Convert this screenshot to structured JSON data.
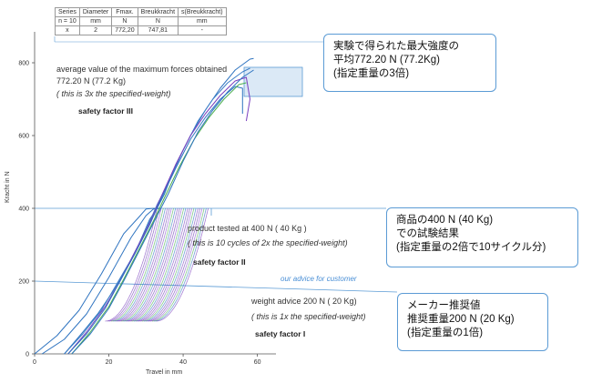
{
  "table": {
    "headers": [
      "Series",
      "Diameter",
      "Fmax.",
      "Breukkracht",
      "s(Breukkracht)"
    ],
    "units": [
      "n = 10",
      "mm",
      "N",
      "N",
      "mm"
    ],
    "row": [
      "x",
      "2",
      "772,20",
      "747,81",
      "-"
    ]
  },
  "annotations": {
    "avg_line1": "average value of the maximum forces obtained",
    "avg_line2": "772.20 N    (77.2 Kg)",
    "avg_line3": "( this is 3x the specified-weight)",
    "sf3": "safety factor III",
    "tested_line1": "product tested at   400 N   ( 40 Kg )",
    "tested_line2": "( this is 10 cycles of 2x the specified-weight)",
    "sf2": "safety factor II",
    "advice_header": "our advice for customer",
    "advice_line1": "weight advice   200 N   ( 20 Kg)",
    "advice_line2": "( this is 1x the specified-weight)",
    "sf1": "safety factor  I"
  },
  "callouts": {
    "top": [
      "実験で得られた最大強度の",
      "平均772.20 N (77.2Kg)",
      "(指定重量の3倍)"
    ],
    "middle": [
      "商品の400 N (40 Kg)",
      "での試験結果",
      "(指定重量の2倍で10サイクル分)"
    ],
    "bottom": [
      "メーカー推奨値",
      "推奨重量200 N (20 Kg)",
      "(指定重量の1倍)"
    ]
  },
  "colors": {
    "curve_blue": "#2f74c0",
    "curve_purple": "#7a3fbf",
    "curve_green": "#4caf50",
    "guide_line": "#5b9bd5",
    "highlight_fill": "#dbe9f6"
  },
  "chart_data": {
    "type": "line",
    "xlabel": "Travel in mm",
    "ylabel": "Kracht in N",
    "xlim": [
      0,
      65
    ],
    "ylim": [
      0,
      860
    ],
    "x_ticks": [
      "0",
      "20",
      "40",
      "60"
    ],
    "y_ticks": [
      "0",
      "200",
      "400",
      "600",
      "800"
    ],
    "reference_levels_N": [
      200,
      400,
      772.2
    ],
    "series": [
      {
        "values": [
          [
            0,
            0
          ],
          [
            6,
            50
          ],
          [
            12,
            120
          ],
          [
            18,
            220
          ],
          [
            24,
            330
          ],
          [
            28,
            375
          ],
          [
            30,
            398
          ],
          [
            32,
            400
          ],
          [
            34,
            400
          ]
        ],
        "color": "#2f74c0"
      },
      {
        "values": [
          [
            2,
            0
          ],
          [
            8,
            40
          ],
          [
            14,
            110
          ],
          [
            20,
            210
          ],
          [
            26,
            320
          ],
          [
            30,
            380
          ],
          [
            32,
            398
          ],
          [
            34,
            400
          ]
        ],
        "color": "#2f74c0"
      },
      {
        "values": [
          [
            8,
            0
          ],
          [
            13,
            60
          ],
          [
            17,
            110
          ],
          [
            21,
            170
          ],
          [
            25,
            240
          ],
          [
            28,
            300
          ],
          [
            31,
            370
          ],
          [
            33,
            400
          ],
          [
            35,
            440
          ],
          [
            38,
            520
          ],
          [
            42,
            600
          ],
          [
            46,
            670
          ],
          [
            50,
            730
          ],
          [
            54,
            780
          ],
          [
            58,
            810
          ],
          [
            59,
            812
          ]
        ],
        "color": "#2f74c0"
      },
      {
        "values": [
          [
            8,
            0
          ],
          [
            13,
            55
          ],
          [
            18,
            120
          ],
          [
            22,
            190
          ],
          [
            26,
            260
          ],
          [
            30,
            340
          ],
          [
            33,
            410
          ],
          [
            36,
            470
          ],
          [
            40,
            560
          ],
          [
            44,
            640
          ],
          [
            48,
            700
          ],
          [
            52,
            745
          ],
          [
            56,
            775
          ],
          [
            58,
            785
          ]
        ],
        "color": "#3d7fc8"
      },
      {
        "values": [
          [
            9,
            0
          ],
          [
            14,
            60
          ],
          [
            19,
            130
          ],
          [
            23,
            200
          ],
          [
            27,
            280
          ],
          [
            31,
            360
          ],
          [
            34,
            430
          ],
          [
            38,
            520
          ],
          [
            42,
            600
          ],
          [
            46,
            660
          ],
          [
            50,
            710
          ],
          [
            54,
            750
          ],
          [
            57,
            760
          ],
          [
            58,
            700
          ],
          [
            57,
            640
          ]
        ],
        "color": "#7a3fbf"
      },
      {
        "values": [
          [
            9,
            0
          ],
          [
            14,
            55
          ],
          [
            19,
            125
          ],
          [
            23,
            200
          ],
          [
            27,
            275
          ],
          [
            31,
            355
          ],
          [
            34,
            425
          ],
          [
            38,
            510
          ],
          [
            42,
            590
          ],
          [
            46,
            650
          ],
          [
            50,
            700
          ],
          [
            54,
            735
          ],
          [
            56,
            730
          ],
          [
            56,
            660
          ]
        ],
        "color": "#2f74c0"
      },
      {
        "values": [
          [
            10,
            0
          ],
          [
            15,
            60
          ],
          [
            20,
            130
          ],
          [
            24,
            205
          ],
          [
            28,
            285
          ],
          [
            32,
            365
          ],
          [
            35,
            430
          ],
          [
            39,
            515
          ],
          [
            43,
            590
          ],
          [
            47,
            650
          ],
          [
            51,
            700
          ],
          [
            55,
            740
          ],
          [
            57,
            745
          ]
        ],
        "color": "#4caf50"
      },
      {
        "values": [
          [
            10,
            0
          ],
          [
            15,
            55
          ],
          [
            20,
            125
          ],
          [
            24,
            200
          ],
          [
            28,
            280
          ],
          [
            32,
            360
          ],
          [
            36,
            440
          ],
          [
            40,
            530
          ],
          [
            44,
            610
          ],
          [
            48,
            670
          ],
          [
            52,
            720
          ],
          [
            56,
            760
          ],
          [
            59,
            780
          ]
        ],
        "color": "#2f74c0"
      }
    ]
  }
}
